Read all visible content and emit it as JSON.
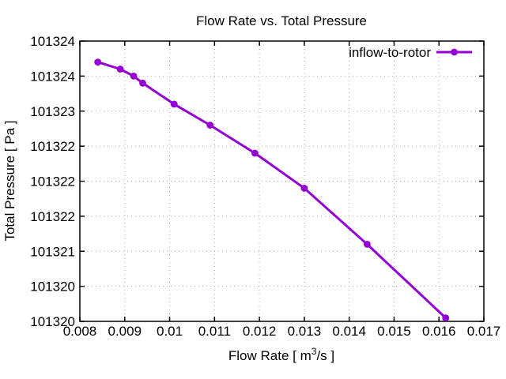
{
  "page": {
    "background": "#ffffff"
  },
  "chart_data": {
    "type": "line",
    "title": "Flow Rate vs. Total Pressure",
    "xlabel": {
      "text": "Flow Rate [ m^3/s ]",
      "prefix": "Flow Rate [ m",
      "superscript": "3",
      "suffix": "/s ]"
    },
    "ylabel": "Total Pressure [ Pa ]",
    "xlim": [
      0.008,
      0.017
    ],
    "ylim": [
      101320,
      101324
    ],
    "grid": "dotted-major",
    "x_ticks": [
      {
        "v": 0.008,
        "label": "0.008"
      },
      {
        "v": 0.009,
        "label": "0.009"
      },
      {
        "v": 0.01,
        "label": "0.01"
      },
      {
        "v": 0.011,
        "label": "0.011"
      },
      {
        "v": 0.012,
        "label": "0.012"
      },
      {
        "v": 0.013,
        "label": "0.013"
      },
      {
        "v": 0.014,
        "label": "0.014"
      },
      {
        "v": 0.015,
        "label": "0.015"
      },
      {
        "v": 0.016,
        "label": "0.016"
      },
      {
        "v": 0.017,
        "label": "0.017"
      }
    ],
    "y_ticks": [
      {
        "v": 101320.0,
        "label": "101320"
      },
      {
        "v": 101320.5,
        "label": "101320"
      },
      {
        "v": 101321.0,
        "label": "101321"
      },
      {
        "v": 101321.5,
        "label": "101322"
      },
      {
        "v": 101322.0,
        "label": "101322"
      },
      {
        "v": 101322.5,
        "label": "101322"
      },
      {
        "v": 101323.0,
        "label": "101323"
      },
      {
        "v": 101323.5,
        "label": "101324"
      },
      {
        "v": 101324.0,
        "label": "101324"
      }
    ],
    "legend": {
      "position": "top-right-inside",
      "entries": [
        {
          "label": "inflow-to-rotor",
          "color": "#9400d3",
          "marker": "filled-circle"
        }
      ]
    },
    "series": [
      {
        "name": "inflow-to-rotor",
        "color": "#9400d3",
        "marker": "circle",
        "points": [
          [
            0.0084,
            101323.7
          ],
          [
            0.0089,
            101323.6
          ],
          [
            0.0092,
            101323.5
          ],
          [
            0.0094,
            101323.4
          ],
          [
            0.0101,
            101323.1
          ],
          [
            0.0109,
            101322.8
          ],
          [
            0.0119,
            101322.4
          ],
          [
            0.013,
            101321.9
          ],
          [
            0.0144,
            101321.1
          ],
          [
            0.01615,
            101320.05
          ]
        ]
      }
    ],
    "colors": {
      "axis": "#000000",
      "grid": "#b0b0b0",
      "text": "#000000"
    }
  }
}
